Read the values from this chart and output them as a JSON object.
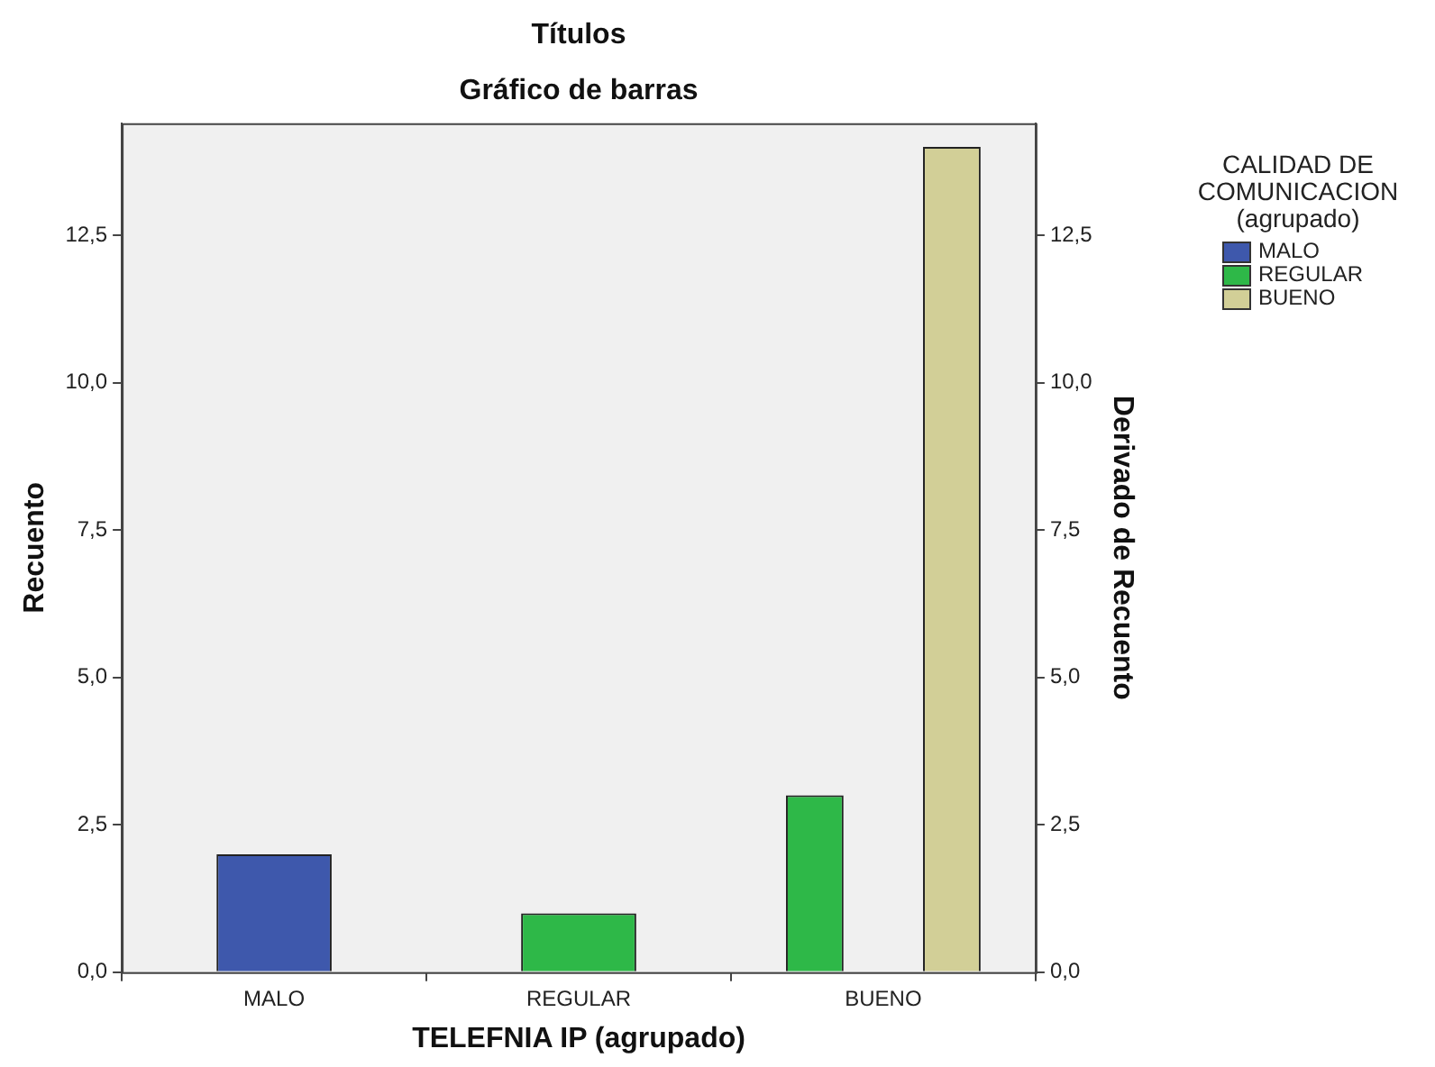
{
  "chart_data": {
    "type": "bar",
    "title": "Títulos",
    "subtitle": "Gráfico de barras",
    "xlabel": "TELEFNIA IP (agrupado)",
    "ylabel": "Recuento",
    "y2label": "Derivado de Recuento",
    "legend_title": "CALIDAD DE COMUNICACION (agrupado)",
    "categories": [
      "MALO",
      "REGULAR",
      "BUENO"
    ],
    "series": [
      {
        "name": "MALO",
        "color": "#3e58ac",
        "values": [
          2,
          null,
          null
        ]
      },
      {
        "name": "REGULAR",
        "color": "#2eb848",
        "values": [
          null,
          1,
          3
        ]
      },
      {
        "name": "BUENO",
        "color": "#d2cf97",
        "values": [
          null,
          null,
          14
        ]
      }
    ],
    "ylim": [
      0,
      14.4
    ],
    "yticks": [
      {
        "value": 0,
        "label": "0,0"
      },
      {
        "value": 2.5,
        "label": "2,5"
      },
      {
        "value": 5,
        "label": "5,0"
      },
      {
        "value": 7.5,
        "label": "7,5"
      },
      {
        "value": 10,
        "label": "10,0"
      },
      {
        "value": 12.5,
        "label": "12,5"
      }
    ],
    "y2lim": [
      0,
      14.4
    ],
    "y2ticks": [
      {
        "value": 0,
        "label": "0,0"
      },
      {
        "value": 2.5,
        "label": "2,5"
      },
      {
        "value": 5,
        "label": "5,0"
      },
      {
        "value": 7.5,
        "label": "7,5"
      },
      {
        "value": 10,
        "label": "10,0"
      },
      {
        "value": 12.5,
        "label": "12,5"
      }
    ],
    "grid": false,
    "legend": "top right"
  }
}
